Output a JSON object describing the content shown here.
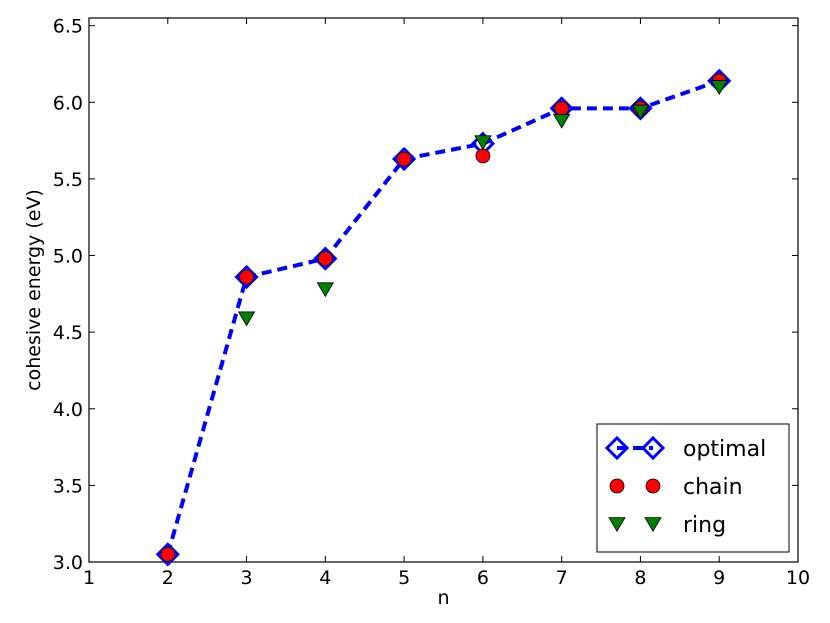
{
  "chart_data": {
    "type": "line",
    "xlabel": "n",
    "ylabel": "cohesive energy (eV)",
    "xlim": [
      1,
      10
    ],
    "ylim": [
      3.0,
      6.55
    ],
    "xticks": [
      1,
      2,
      3,
      4,
      5,
      6,
      7,
      8,
      9,
      10
    ],
    "yticks": [
      3.0,
      3.5,
      4.0,
      4.5,
      5.0,
      5.5,
      6.0,
      6.5
    ],
    "xtick_labels": [
      "1",
      "2",
      "3",
      "4",
      "5",
      "6",
      "7",
      "8",
      "9",
      "10"
    ],
    "ytick_labels": [
      "3.0",
      "3.5",
      "4.0",
      "4.5",
      "5.0",
      "5.5",
      "6.0",
      "6.5"
    ],
    "grid": false,
    "legend_position": "bottom-right",
    "series": [
      {
        "name": "optimal",
        "marker": "diamond",
        "line": "dashed",
        "color": "#0000ff",
        "x": [
          2,
          3,
          4,
          5,
          6,
          7,
          8,
          9
        ],
        "y": [
          3.05,
          4.86,
          4.98,
          5.63,
          5.73,
          5.96,
          5.96,
          6.14
        ]
      },
      {
        "name": "chain",
        "marker": "circle",
        "line": "none",
        "color": "#ff0000",
        "x": [
          2,
          3,
          4,
          5,
          6,
          7,
          8,
          9
        ],
        "y": [
          3.05,
          4.86,
          4.98,
          5.63,
          5.65,
          5.96,
          5.96,
          6.14
        ]
      },
      {
        "name": "ring",
        "marker": "triangle-down",
        "line": "none",
        "color": "#008000",
        "x": [
          3,
          4,
          6,
          7,
          8,
          9
        ],
        "y": [
          4.59,
          4.78,
          5.74,
          5.88,
          5.94,
          6.1
        ]
      }
    ]
  }
}
